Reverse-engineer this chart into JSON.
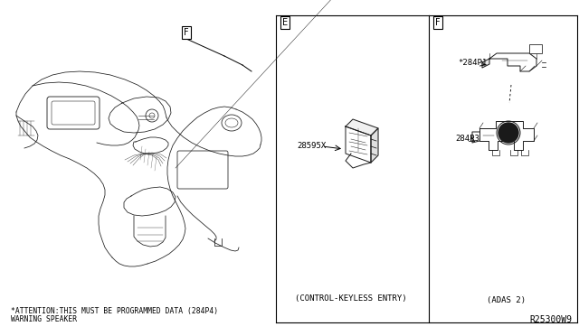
{
  "bg_color": "#ffffff",
  "fig_width": 6.4,
  "fig_height": 3.72,
  "dpi": 100,
  "text_color": "#000000",
  "diagram_ref": "R25300W9",
  "bottom_note_line1": "*ATTENTION:THIS MUST BE PROGRAMMED DATA (284P4)",
  "bottom_note_line2": "WARNING SPEAKER",
  "panel_E_label": "E",
  "panel_F_label": "F",
  "panel_main_label": "F",
  "part_28595X": "28595X",
  "part_284P1": "*284P1",
  "part_284P3": "284P3",
  "caption_E": "(CONTROL-KEYLESS ENTRY)",
  "caption_F": "(ADAS 2)",
  "panel_border_lw": 0.8,
  "line_color": "#1a1a1a"
}
